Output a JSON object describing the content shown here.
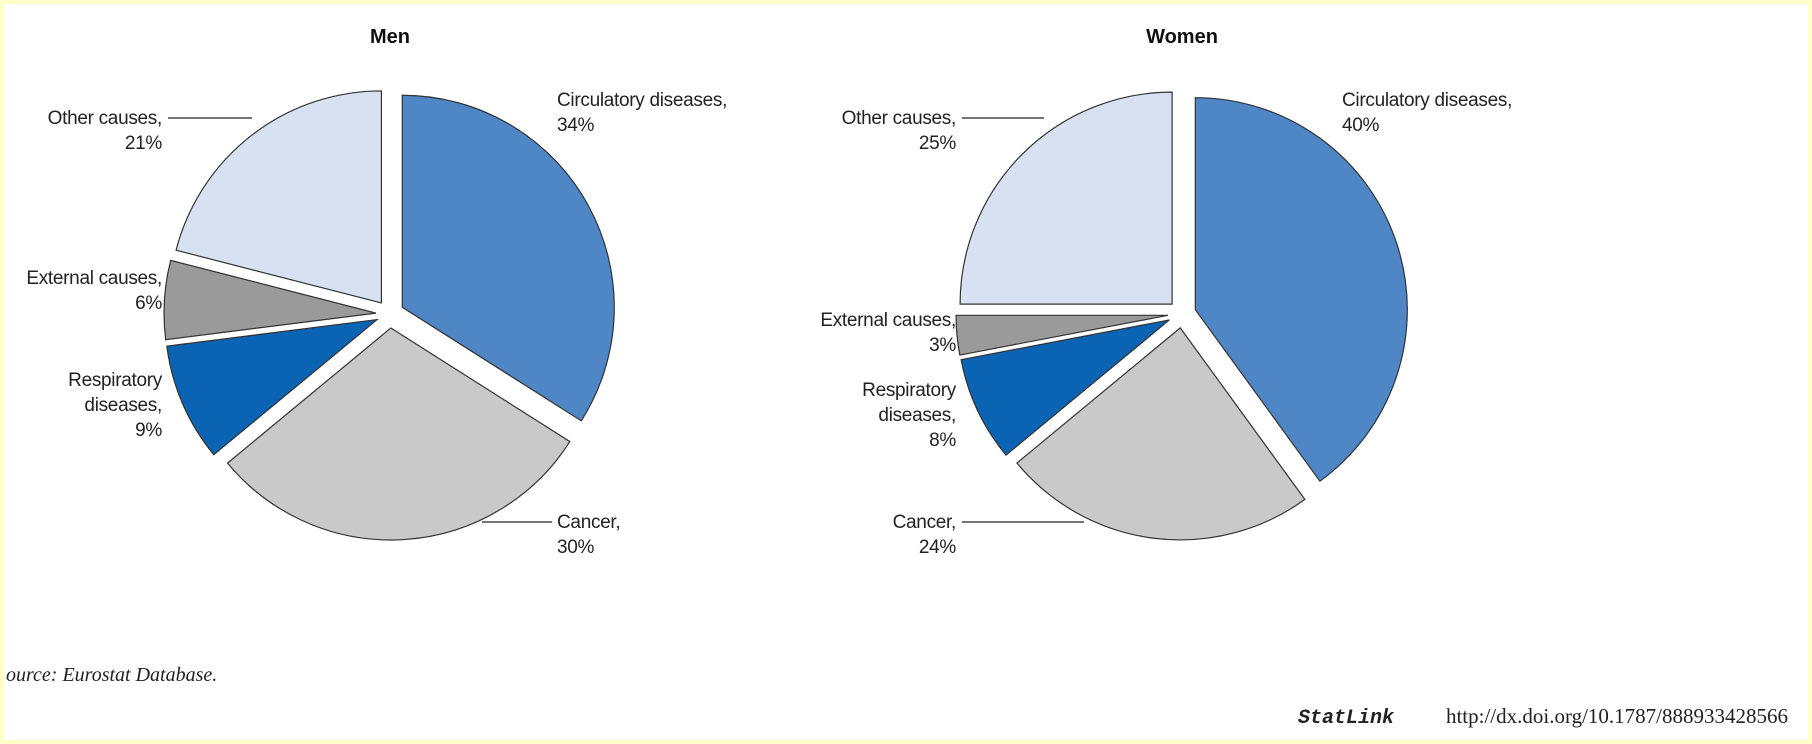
{
  "chart_data": [
    {
      "type": "pie",
      "title": "Men",
      "categories": [
        "Circulatory diseases,",
        "Cancer,",
        "Respiratory diseases,",
        "External causes,",
        "Other causes,"
      ],
      "values": [
        34,
        30,
        9,
        6,
        21
      ],
      "value_labels": [
        "34%",
        "30%",
        "9%",
        "6%",
        "21%"
      ],
      "colors": [
        "#4f86c6",
        "#c9c9c9",
        "#0b63b3",
        "#9a9a9a",
        "#d7e1f1"
      ]
    },
    {
      "type": "pie",
      "title": "Women",
      "categories": [
        "Circulatory diseases,",
        "Cancer,",
        "Respiratory diseases,",
        "External causes,",
        "Other causes,"
      ],
      "values": [
        40,
        24,
        8,
        3,
        25
      ],
      "value_labels": [
        "40%",
        "24%",
        "8%",
        "3%",
        "25%"
      ],
      "colors": [
        "#4f86c6",
        "#c9c9c9",
        "#0b63b3",
        "#9a9a9a",
        "#d7e1f1"
      ]
    }
  ],
  "source": "ource: Eurostat Database.",
  "statlink": {
    "label": "StatLink",
    "url": "http://dx.doi.org/10.1787/888933428566"
  }
}
